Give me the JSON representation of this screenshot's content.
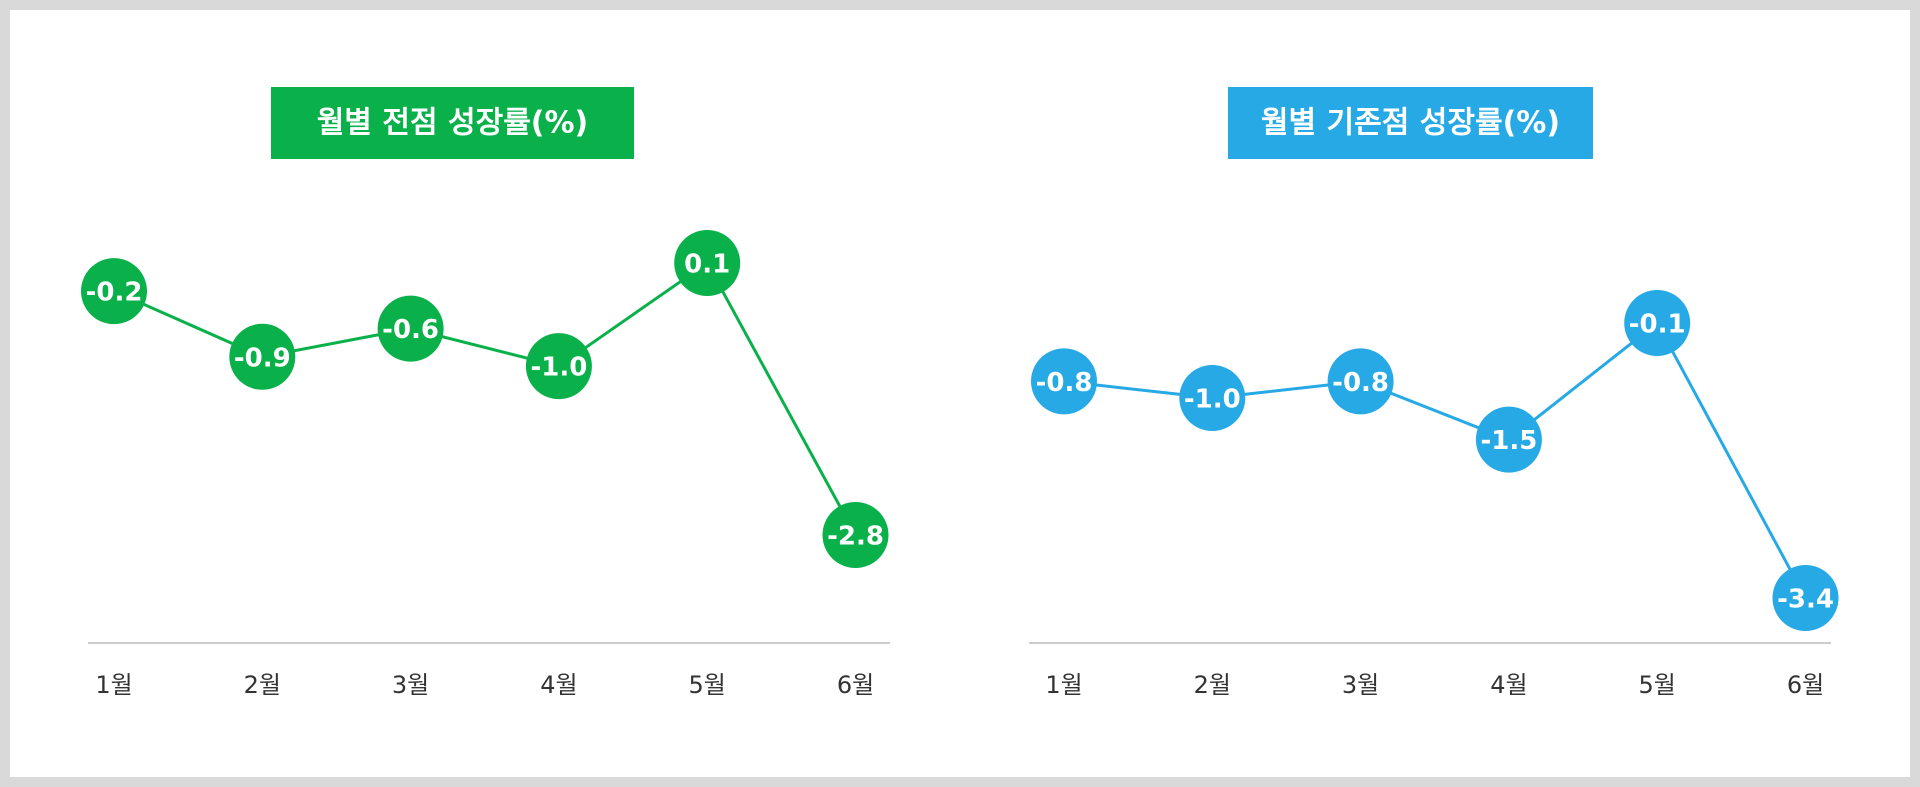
{
  "chart_data": [
    {
      "type": "line",
      "title": "월별 전점 성장률(%)",
      "categories": [
        "1월",
        "2월",
        "3월",
        "4월",
        "5월",
        "6월"
      ],
      "series": [
        {
          "color": "#0ab14b",
          "values": [
            -0.2,
            -0.9,
            -0.6,
            -1.0,
            0.1,
            -2.8
          ],
          "value_labels": [
            "-0.2",
            "-0.9",
            "-0.6",
            "-1.0",
            "0.1",
            "-2.8"
          ]
        }
      ]
    },
    {
      "type": "line",
      "title": "월별 기존점 성장률(%)",
      "categories": [
        "1월",
        "2월",
        "3월",
        "4월",
        "5월",
        "6월"
      ],
      "series": [
        {
          "color": "#27a9e6",
          "values": [
            -0.8,
            -1.0,
            -0.8,
            -1.5,
            -0.1,
            -3.4
          ],
          "value_labels": [
            "-0.8",
            "-1.0",
            "-0.8",
            "-1.5",
            "-0.1",
            "-3.4"
          ]
        }
      ]
    }
  ]
}
